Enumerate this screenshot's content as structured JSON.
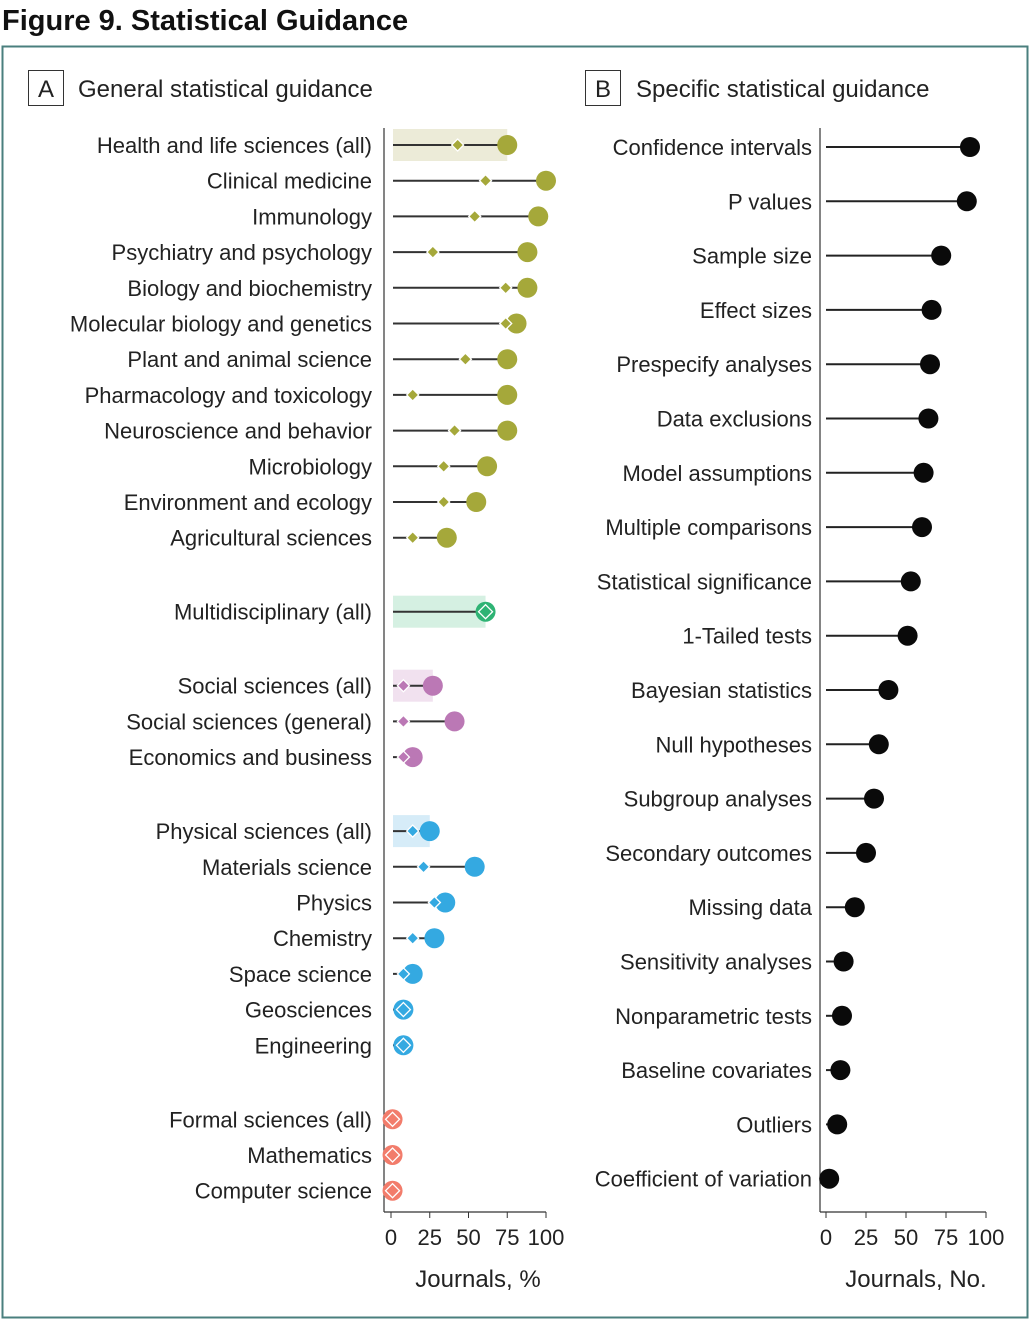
{
  "figure_title": "Figure 9. Statistical Guidance",
  "chart_data": [
    {
      "type": "dot-plot",
      "panel_letter": "A",
      "title": "General statistical guidance",
      "xlabel": "Journals, %",
      "xlim": [
        0,
        100
      ],
      "xticks": [
        "0",
        "25",
        "50",
        "75",
        "100"
      ],
      "series_legend": [
        "diamond",
        "circle"
      ],
      "groups": [
        {
          "color": "#a5a83a",
          "band": "#ecebd8",
          "rows": [
            {
              "label": "Health and life sciences (all)",
              "diamond": 43,
              "circle": 75,
              "summary": true
            },
            {
              "label": "Clinical medicine",
              "diamond": 61,
              "circle": 100
            },
            {
              "label": "Immunology",
              "diamond": 54,
              "circle": 95
            },
            {
              "label": "Psychiatry and psychology",
              "diamond": 27,
              "circle": 88
            },
            {
              "label": "Biology and biochemistry",
              "diamond": 74,
              "circle": 88
            },
            {
              "label": "Molecular biology and genetics",
              "diamond": 74,
              "circle": 81
            },
            {
              "label": "Plant and animal science",
              "diamond": 48,
              "circle": 75
            },
            {
              "label": "Pharmacology and toxicology",
              "diamond": 14,
              "circle": 75
            },
            {
              "label": "Neuroscience and behavior",
              "diamond": 41,
              "circle": 75
            },
            {
              "label": "Microbiology",
              "diamond": 34,
              "circle": 62
            },
            {
              "label": "Environment and ecology",
              "diamond": 34,
              "circle": 55
            },
            {
              "label": "Agricultural sciences",
              "diamond": 14,
              "circle": 36
            }
          ]
        },
        {
          "color": "#2eb374",
          "band": "#d5f0e2",
          "rows": [
            {
              "label": "Multidisciplinary (all)",
              "diamond": 61,
              "circle": 61,
              "summary": true
            }
          ]
        },
        {
          "color": "#bb78b5",
          "band": "#f1e1ef",
          "rows": [
            {
              "label": "Social sciences (all)",
              "diamond": 8,
              "circle": 27,
              "summary": true
            },
            {
              "label": "Social sciences (general)",
              "diamond": 8,
              "circle": 41
            },
            {
              "label": "Economics and business",
              "diamond": 8,
              "circle": 14
            }
          ]
        },
        {
          "color": "#34a9e1",
          "band": "#d6ecf8",
          "rows": [
            {
              "label": "Physical sciences (all)",
              "diamond": 14,
              "circle": 25,
              "summary": true
            },
            {
              "label": "Materials science",
              "diamond": 21,
              "circle": 54
            },
            {
              "label": "Physics",
              "diamond": 28,
              "circle": 35
            },
            {
              "label": "Chemistry",
              "diamond": 14,
              "circle": 28
            },
            {
              "label": "Space science",
              "diamond": 8,
              "circle": 14
            },
            {
              "label": "Geosciences",
              "diamond": 8,
              "circle": 8
            },
            {
              "label": "Engineering",
              "diamond": 8,
              "circle": 8
            }
          ]
        },
        {
          "color": "#f27c6b",
          "band": "#fde4e0",
          "rows": [
            {
              "label": "Formal sciences (all)",
              "diamond": 1,
              "circle": 1,
              "summary": false
            },
            {
              "label": "Mathematics",
              "diamond": 1,
              "circle": 1
            },
            {
              "label": "Computer science",
              "diamond": 1,
              "circle": 1
            }
          ]
        }
      ]
    },
    {
      "type": "lollipop",
      "panel_letter": "B",
      "title": "Specific statistical guidance",
      "xlabel": "Journals, No.",
      "xlim": [
        0,
        100
      ],
      "xticks": [
        "0",
        "25",
        "50",
        "75",
        "100"
      ],
      "color": "#0a0a0a",
      "categories": [
        "Confidence intervals",
        "P values",
        "Sample size",
        "Effect sizes",
        "Prespecify analyses",
        "Data exclusions",
        "Model assumptions",
        "Multiple comparisons",
        "Statistical significance",
        "1-Tailed tests",
        "Bayesian statistics",
        "Null hypotheses",
        "Subgroup analyses",
        "Secondary outcomes",
        "Missing data",
        "Sensitivity analyses",
        "Nonparametric tests",
        "Baseline covariates",
        "Outliers",
        "Coefficient of variation"
      ],
      "values": [
        90,
        88,
        72,
        66,
        65,
        64,
        61,
        60,
        53,
        51,
        39,
        33,
        30,
        25,
        18,
        11,
        10,
        9,
        7,
        2
      ]
    }
  ]
}
